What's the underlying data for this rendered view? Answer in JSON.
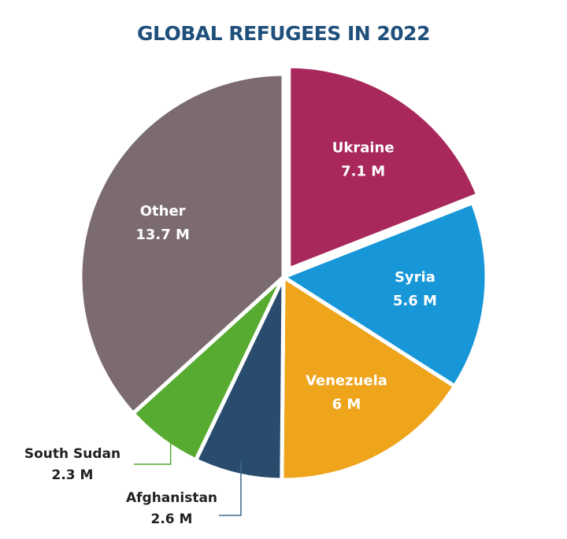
{
  "chart_data": {
    "type": "pie",
    "title": "GLOBAL REFUGEES IN 2022",
    "categories": [
      "Ukraine",
      "Syria",
      "Venezuela",
      "Afghanistan",
      "South Sudan",
      "Other"
    ],
    "values": [
      7.1,
      5.6,
      6,
      2.6,
      2.3,
      13.7
    ],
    "value_labels": [
      "7.1 M",
      "5.6 M",
      "6 M",
      "2.6 M",
      "2.3 M",
      "13.7 M"
    ],
    "colors": [
      "#a8285b",
      "#1796d8",
      "#eea41b",
      "#294c6e",
      "#56ab30",
      "#7b6b70"
    ]
  }
}
